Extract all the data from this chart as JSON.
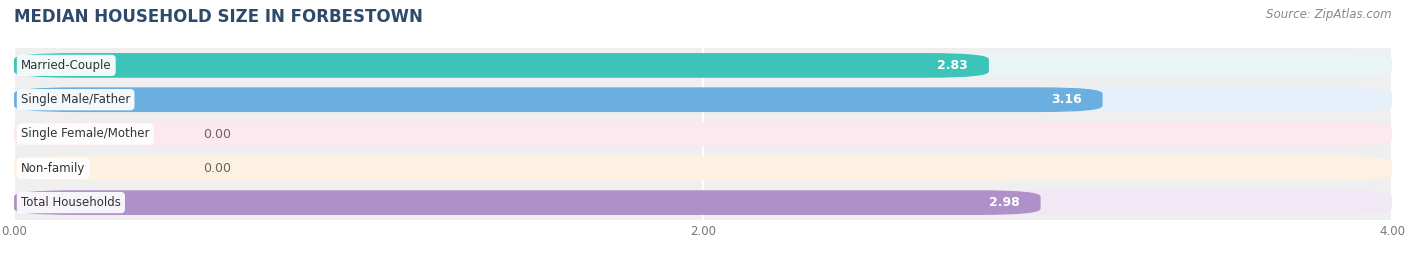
{
  "title": "MEDIAN HOUSEHOLD SIZE IN FORBESTOWN",
  "source": "Source: ZipAtlas.com",
  "categories": [
    "Married-Couple",
    "Single Male/Father",
    "Single Female/Mother",
    "Non-family",
    "Total Households"
  ],
  "values": [
    2.83,
    3.16,
    0.0,
    0.0,
    2.98
  ],
  "bar_colors": [
    "#3dc4b8",
    "#6baee0",
    "#f490a8",
    "#f5c48a",
    "#b090c8"
  ],
  "bar_bg_colors": [
    "#e8f5f4",
    "#e6f0fa",
    "#fce8ee",
    "#fdf1e2",
    "#f0e8f5"
  ],
  "xlim": [
    0,
    4.0
  ],
  "xticks": [
    0.0,
    2.0,
    4.0
  ],
  "xtick_labels": [
    "0.00",
    "2.00",
    "4.00"
  ],
  "title_color": "#2d4a6b",
  "title_fontsize": 12,
  "label_fontsize": 8.5,
  "value_fontsize": 9,
  "source_fontsize": 8.5,
  "bar_height": 0.72,
  "background_color": "#f0f0f0"
}
